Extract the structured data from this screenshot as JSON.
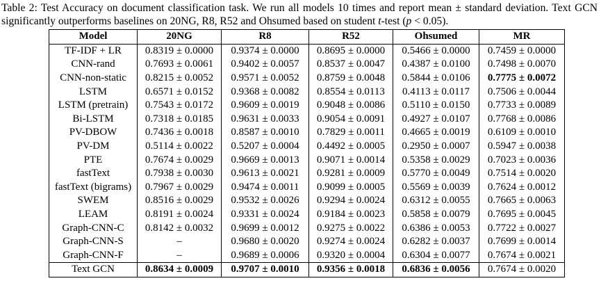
{
  "caption": [
    "Table 2: Test Accuracy on document classification task. We run all models 10 times and report mean ± standard deviation. Text GCN significantly outperforms baselines on 20NG, R8, R52 and Ohsumed based on student ",
    "t",
    "-test (",
    "p",
    " < 0.05)."
  ],
  "table": {
    "header": [
      "Model",
      "20NG",
      "R8",
      "R52",
      "Ohsumed",
      "MR"
    ],
    "rows": [
      [
        "TF-IDF + LR",
        "0.8319 ± 0.0000",
        "0.9374 ± 0.0000",
        "0.8695 ± 0.0000",
        "0.5466 ± 0.0000",
        "0.7459 ± 0.0000"
      ],
      [
        "CNN-rand",
        "0.7693 ± 0.0061",
        "0.9402 ± 0.0057",
        "0.8537 ± 0.0047",
        "0.4387 ± 0.0100",
        "0.7498 ± 0.0070"
      ],
      [
        "CNN-non-static",
        "0.8215 ± 0.0052",
        "0.9571 ± 0.0052",
        "0.8759 ± 0.0048",
        "0.5844 ± 0.0106",
        "0.7775 ± 0.0072"
      ],
      [
        "LSTM",
        "0.6571 ± 0.0152",
        "0.9368 ± 0.0082",
        "0.8554 ± 0.0113",
        "0.4113 ± 0.0117",
        "0.7506 ± 0.0044"
      ],
      [
        "LSTM (pretrain)",
        "0.7543 ± 0.0172",
        "0.9609 ± 0.0019",
        "0.9048 ± 0.0086",
        "0.5110 ± 0.0150",
        "0.7733 ± 0.0089"
      ],
      [
        "Bi-LSTM",
        "0.7318 ± 0.0185",
        "0.9631 ± 0.0033",
        "0.9054 ± 0.0091",
        "0.4927 ± 0.0107",
        "0.7768 ± 0.0086"
      ],
      [
        "PV-DBOW",
        "0.7436 ± 0.0018",
        "0.8587 ± 0.0010",
        "0.7829 ± 0.0011",
        "0.4665 ± 0.0019",
        "0.6109 ± 0.0010"
      ],
      [
        "PV-DM",
        "0.5114 ± 0.0022",
        "0.5207 ± 0.0004",
        "0.4492 ± 0.0005",
        "0.2950 ± 0.0007",
        "0.5947 ± 0.0038"
      ],
      [
        "PTE",
        "0.7674 ± 0.0029",
        "0.9669 ± 0.0013",
        "0.9071 ± 0.0014",
        "0.5358 ± 0.0029",
        "0.7023 ± 0.0036"
      ],
      [
        "fastText",
        "0.7938 ± 0.0030",
        "0.9613 ± 0.0021",
        "0.9281 ± 0.0009",
        "0.5770 ± 0.0049",
        "0.7514 ± 0.0020"
      ],
      [
        "fastText (bigrams)",
        "0.7967 ± 0.0029",
        "0.9474 ± 0.0011",
        "0.9099 ± 0.0005",
        "0.5569 ± 0.0039",
        "0.7624 ± 0.0012"
      ],
      [
        "SWEM",
        "0.8516 ± 0.0029",
        "0.9532 ± 0.0026",
        "0.9294 ± 0.0024",
        "0.6312 ± 0.0055",
        "0.7665 ± 0.0063"
      ],
      [
        "LEAM",
        "0.8191 ± 0.0024",
        "0.9331 ± 0.0024",
        "0.9184 ± 0.0023",
        "0.5858 ± 0.0079",
        "0.7695 ± 0.0045"
      ],
      [
        "Graph-CNN-C",
        "0.8142 ± 0.0032",
        "0.9699 ± 0.0012",
        "0.9275 ± 0.0022",
        "0.6386 ± 0.0053",
        "0.7722 ± 0.0027"
      ],
      [
        "Graph-CNN-S",
        "–",
        "0.9680 ± 0.0020",
        "0.9274 ± 0.0024",
        "0.6282 ± 0.0037",
        "0.7699 ± 0.0014"
      ],
      [
        "Graph-CNN-F",
        "–",
        "0.9689 ± 0.0006",
        "0.9320 ± 0.0004",
        "0.6304 ± 0.0077",
        "0.7674 ± 0.0021"
      ],
      [
        "Text GCN",
        "0.8634 ± 0.0009",
        "0.9707 ± 0.0010",
        "0.9356 ± 0.0018",
        "0.6836 ± 0.0056",
        "0.7674 ± 0.0020"
      ]
    ],
    "bold_cells": [
      [
        2,
        5
      ],
      [
        16,
        1
      ],
      [
        16,
        2
      ],
      [
        16,
        3
      ],
      [
        16,
        4
      ]
    ]
  }
}
